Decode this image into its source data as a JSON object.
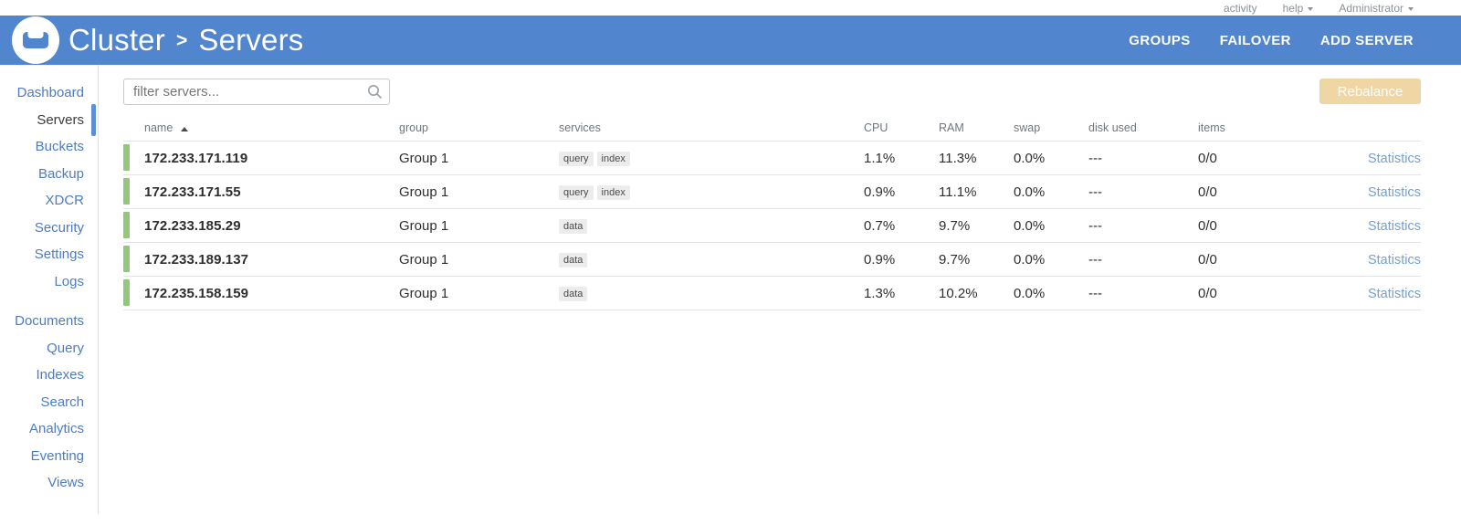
{
  "topbar": {
    "activity": "activity",
    "help": "help",
    "user": "Administrator"
  },
  "header": {
    "breadcrumb": {
      "cluster": "Cluster",
      "separator": ">",
      "page": "Servers"
    },
    "nav": [
      {
        "label": "GROUPS"
      },
      {
        "label": "FAILOVER"
      },
      {
        "label": "ADD SERVER"
      }
    ]
  },
  "sidebar": {
    "primary": [
      {
        "label": "Dashboard"
      },
      {
        "label": "Servers",
        "active": true
      },
      {
        "label": "Buckets"
      },
      {
        "label": "Backup"
      },
      {
        "label": "XDCR"
      },
      {
        "label": "Security"
      },
      {
        "label": "Settings"
      },
      {
        "label": "Logs"
      }
    ],
    "secondary": [
      {
        "label": "Documents"
      },
      {
        "label": "Query"
      },
      {
        "label": "Indexes"
      },
      {
        "label": "Search"
      },
      {
        "label": "Analytics"
      },
      {
        "label": "Eventing"
      },
      {
        "label": "Views"
      }
    ]
  },
  "toolbar": {
    "filter_placeholder": "filter servers...",
    "rebalance_label": "Rebalance",
    "rebalance_disabled": true
  },
  "table": {
    "headers": [
      {
        "label": "name",
        "sorted": "asc"
      },
      {
        "label": "group"
      },
      {
        "label": "services"
      },
      {
        "label": "CPU"
      },
      {
        "label": "RAM"
      },
      {
        "label": "swap"
      },
      {
        "label": "disk used"
      },
      {
        "label": "items"
      }
    ],
    "rows": [
      {
        "name": "172.233.171.119",
        "group": "Group 1",
        "services": [
          "query",
          "index"
        ],
        "cpu": "1.1%",
        "ram": "11.3%",
        "swap": "0.0%",
        "disk_used": "---",
        "items": "0/0",
        "status": "healthy",
        "statistics": "Statistics"
      },
      {
        "name": "172.233.171.55",
        "group": "Group 1",
        "services": [
          "query",
          "index"
        ],
        "cpu": "0.9%",
        "ram": "11.1%",
        "swap": "0.0%",
        "disk_used": "---",
        "items": "0/0",
        "status": "healthy",
        "statistics": "Statistics"
      },
      {
        "name": "172.233.185.29",
        "group": "Group 1",
        "services": [
          "data"
        ],
        "cpu": "0.7%",
        "ram": "9.7%",
        "swap": "0.0%",
        "disk_used": "---",
        "items": "0/0",
        "status": "healthy",
        "statistics": "Statistics"
      },
      {
        "name": "172.233.189.137",
        "group": "Group 1",
        "services": [
          "data"
        ],
        "cpu": "0.9%",
        "ram": "9.7%",
        "swap": "0.0%",
        "disk_used": "---",
        "items": "0/0",
        "status": "healthy",
        "statistics": "Statistics"
      },
      {
        "name": "172.235.158.159",
        "group": "Group 1",
        "services": [
          "data"
        ],
        "cpu": "1.3%",
        "ram": "10.2%",
        "swap": "0.0%",
        "disk_used": "---",
        "items": "0/0",
        "status": "healthy",
        "statistics": "Statistics"
      }
    ]
  },
  "colors": {
    "header_blue": "#5185CE",
    "sidebar_link_blue": "#4E7CC1",
    "active_indicator_blue": "#5C8FD6",
    "healthy_green": "#92C77C",
    "rebalance_disabled": "#F0D6A4",
    "statistics_link": "#74A1D4",
    "badge_bg": "#ececec"
  }
}
